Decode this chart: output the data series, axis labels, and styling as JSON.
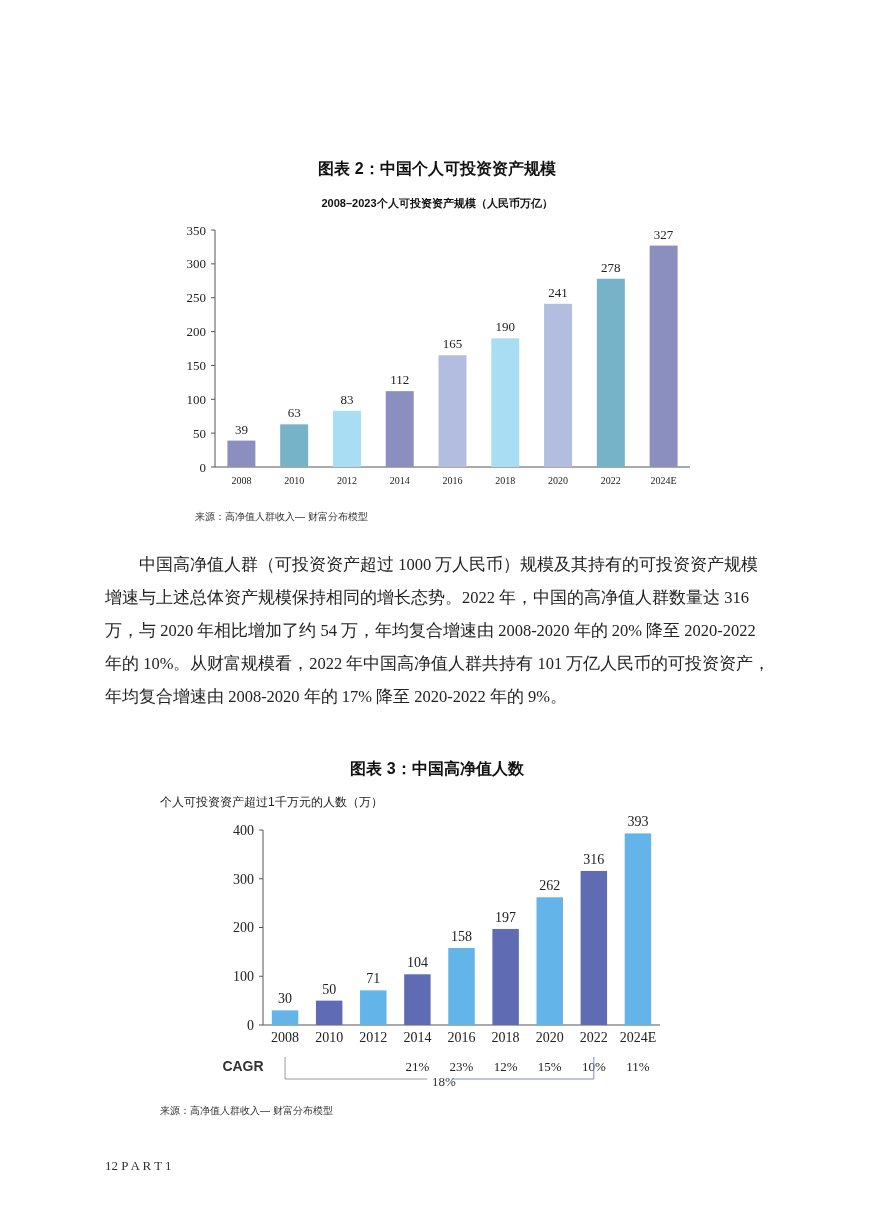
{
  "chart_data": [
    {
      "type": "bar",
      "title": "图表 2：中国个人可投资资产规模",
      "subtitle": "2008–2023个人可投资资产规模（人民币万亿）",
      "categories": [
        "2008",
        "2010",
        "2012",
        "2014",
        "2016",
        "2018",
        "2020",
        "2022",
        "2024E"
      ],
      "values": [
        39,
        63,
        83,
        112,
        165,
        190,
        241,
        278,
        327
      ],
      "colors": [
        "#8b8fbf",
        "#76b3c9",
        "#a8ddf3",
        "#8b8fbf",
        "#b3bde0",
        "#a8ddf3",
        "#b3bde0",
        "#76b3c9",
        "#8b8fbf"
      ],
      "ylim": [
        0,
        350
      ],
      "yticks": [
        0,
        50,
        100,
        150,
        200,
        250,
        300,
        350
      ],
      "data_labels": true,
      "annotations": [
        "来源：高净值人群收入— 财富分布模型",
        "中国高净值人群（可投资资产超过 1000 万人民币）规模及其持有的可投资资产规模增速与上述总体资产规模保持相同的增长态势。2022 年，中国的高净值人群数量达 316 万，与 2020 年相比增加了约 54 万，年均复合增速由 2008-2020 年的 20% 降至 2020-2022 年的 10%。从财富规模看，2022 年中国高净值人群共持有 101 万亿人民币的可投资资产，年均复合增速由 2008-2020 年的 17% 降至 2020-2022 年的 9%。"
      ]
    },
    {
      "type": "bar",
      "title": "图表 3：中国高净值人数",
      "ylabel": "个人可投资资产超过1千万元的人数（万）",
      "categories": [
        "2008",
        "2010",
        "2012",
        "2014",
        "2016",
        "2018",
        "2020",
        "2022",
        "2024E"
      ],
      "values": [
        30,
        50,
        71,
        104,
        158,
        197,
        262,
        316,
        393
      ],
      "colors": [
        "#63b4e8",
        "#5f6cb3",
        "#63b4e8",
        "#5f6cb3",
        "#63b4e8",
        "#5f6cb3",
        "#63b4e8",
        "#5f6cb3",
        "#63b4e8"
      ],
      "ylim": [
        0,
        400
      ],
      "yticks": [
        0,
        100,
        200,
        300,
        400
      ],
      "data_labels": true,
      "annotations": [
        "CAGR",
        "18%",
        "21%",
        "23%",
        "12%",
        "15%",
        "10%",
        "11%",
        "来源：高净值人群收入— 财富分布模型",
        "12 P A R T 1"
      ]
    }
  ]
}
